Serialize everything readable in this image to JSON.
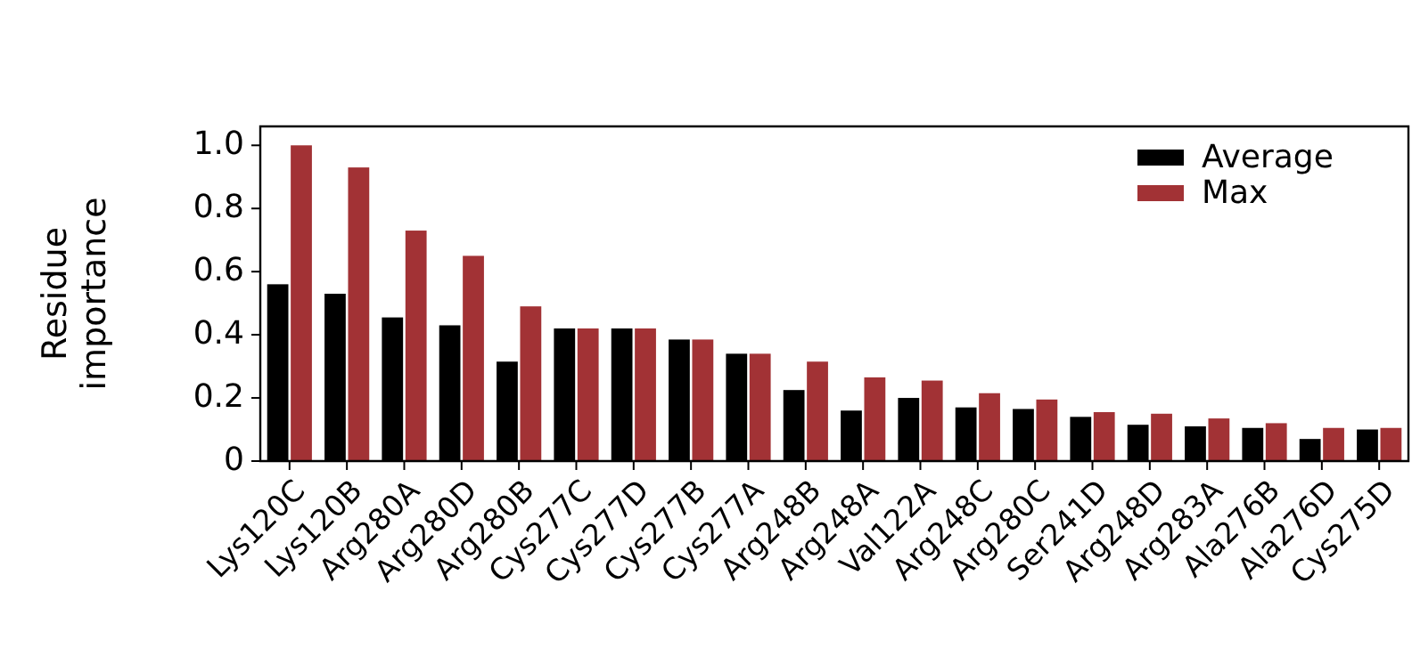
{
  "chart_data": {
    "type": "bar",
    "ylabel": "Residue\nimportance",
    "categories": [
      "Lys120C",
      "Lys120B",
      "Arg280A",
      "Arg280D",
      "Arg280B",
      "Cys277C",
      "Cys277D",
      "Cys277B",
      "Cys277A",
      "Arg248B",
      "Arg248A",
      "Val122A",
      "Arg248C",
      "Arg280C",
      "Ser241D",
      "Arg248D",
      "Arg283A",
      "Ala276B",
      "Ala276D",
      "Cys275D"
    ],
    "series": [
      {
        "name": "Average",
        "color": "#000000",
        "values": [
          0.56,
          0.53,
          0.455,
          0.43,
          0.315,
          0.42,
          0.42,
          0.385,
          0.34,
          0.225,
          0.16,
          0.2,
          0.17,
          0.165,
          0.14,
          0.115,
          0.11,
          0.105,
          0.07,
          0.1
        ]
      },
      {
        "name": "Max",
        "color": "#a23235",
        "values": [
          1.0,
          0.93,
          0.73,
          0.65,
          0.49,
          0.42,
          0.42,
          0.385,
          0.34,
          0.315,
          0.265,
          0.255,
          0.215,
          0.195,
          0.155,
          0.15,
          0.135,
          0.12,
          0.105,
          0.105
        ]
      }
    ],
    "ylim": [
      0,
      1.06
    ],
    "yticks": [
      {
        "value": 0,
        "label": "0"
      },
      0.2,
      0.4,
      0.6,
      0.8,
      {
        "value": 1,
        "label": "1.0"
      }
    ],
    "grid": false,
    "legend": "top right"
  }
}
